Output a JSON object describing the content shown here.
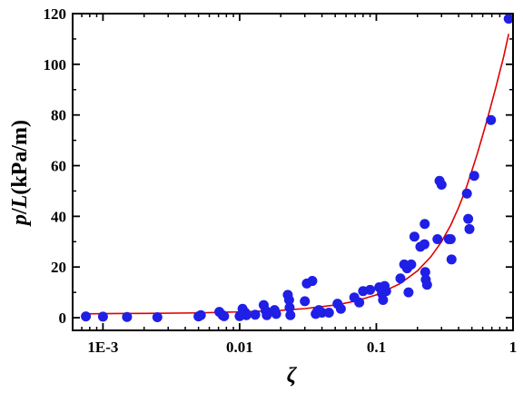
{
  "chart_data": {
    "type": "scatter",
    "title": "",
    "xlabel": "ζ",
    "ylabel_parts": {
      "p": "p",
      "slash": "/",
      "L": "L",
      "unit": "(kPa/m)"
    },
    "xscale": "log",
    "xlim": [
      0.0006,
      1.0
    ],
    "ylim": [
      -5,
      120
    ],
    "x_ticks": [
      {
        "value": 0.001,
        "label": "1E-3"
      },
      {
        "value": 0.01,
        "label": "0.01"
      },
      {
        "value": 0.1,
        "label": "0.1"
      },
      {
        "value": 1,
        "label": "1"
      }
    ],
    "y_ticks": [
      {
        "value": 0,
        "label": "0"
      },
      {
        "value": 20,
        "label": "20"
      },
      {
        "value": 40,
        "label": "40"
      },
      {
        "value": 60,
        "label": "60"
      },
      {
        "value": 80,
        "label": "80"
      },
      {
        "value": 100,
        "label": "100"
      },
      {
        "value": 120,
        "label": "120"
      }
    ],
    "grid": false,
    "legend": false,
    "colors": {
      "points": "#1f1fe6",
      "fit": "#e00000",
      "axis": "#000000"
    },
    "series": [
      {
        "kind": "scatter",
        "x": [
          0.00075,
          0.001,
          0.0015,
          0.0025,
          0.005,
          0.0052,
          0.0071,
          0.0075,
          0.0077,
          0.01,
          0.0105,
          0.011,
          0.0112,
          0.013,
          0.015,
          0.0155,
          0.0158,
          0.018,
          0.0185,
          0.0225,
          0.023,
          0.0232,
          0.0235,
          0.03,
          0.031,
          0.034,
          0.036,
          0.037,
          0.038,
          0.04,
          0.045,
          0.052,
          0.055,
          0.069,
          0.075,
          0.08,
          0.09,
          0.105,
          0.11,
          0.112,
          0.115,
          0.118,
          0.15,
          0.16,
          0.168,
          0.17,
          0.172,
          0.18,
          0.19,
          0.21,
          0.225,
          0.226,
          0.228,
          0.23,
          0.235,
          0.28,
          0.29,
          0.3,
          0.34,
          0.35,
          0.355,
          0.46,
          0.47,
          0.48,
          0.52,
          0.69,
          0.93
        ],
        "y": [
          0.5,
          0.4,
          0.3,
          0.2,
          0.5,
          1.0,
          2.3,
          1.0,
          0.6,
          0.6,
          3.5,
          2.0,
          1.0,
          1.2,
          5.0,
          2.8,
          1.0,
          3.0,
          1.5,
          9.0,
          7.0,
          4.0,
          1.0,
          6.5,
          13.5,
          14.5,
          1.5,
          2.5,
          3.0,
          2.0,
          2.0,
          5.5,
          3.5,
          8.0,
          6.0,
          10.5,
          11.0,
          12.0,
          9.5,
          7.0,
          12.5,
          10.5,
          15.5,
          21.0,
          19.5,
          20.0,
          10.0,
          21.0,
          32.0,
          28.0,
          29.0,
          37.0,
          18.0,
          15.0,
          13.0,
          31.0,
          54.0,
          52.5,
          31.0,
          31.0,
          23.0,
          49.0,
          39.0,
          35.0,
          56.0,
          78.0,
          118.0
        ]
      },
      {
        "kind": "fit-line",
        "x": [
          0.00075,
          0.001,
          0.002,
          0.005,
          0.01,
          0.02,
          0.03,
          0.05,
          0.07,
          0.1,
          0.15,
          0.2,
          0.25,
          0.3,
          0.35,
          0.4,
          0.45,
          0.5,
          0.55,
          0.6,
          0.65,
          0.7,
          0.75,
          0.8,
          0.85,
          0.9,
          0.93
        ],
        "y": [
          1.5,
          1.6,
          1.7,
          1.9,
          2.3,
          2.9,
          3.6,
          5.0,
          6.5,
          9.0,
          13.5,
          18.5,
          24.0,
          30.0,
          36.5,
          43.5,
          50.5,
          58.0,
          65.0,
          72.0,
          78.5,
          85.0,
          91.0,
          97.0,
          102.5,
          108.5,
          112.0
        ]
      }
    ]
  }
}
